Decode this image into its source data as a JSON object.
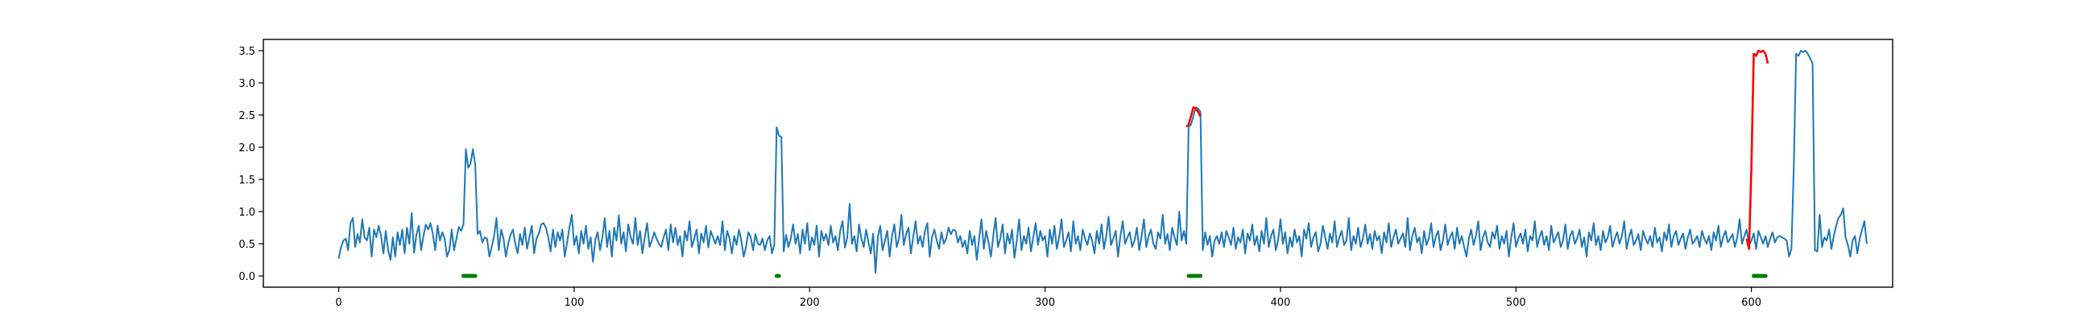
{
  "chart_data": {
    "type": "line",
    "title": "",
    "xlabel": "",
    "ylabel": "",
    "xlim": [
      -32,
      660
    ],
    "ylim": [
      -0.175,
      3.675
    ],
    "x_ticks": [
      0,
      100,
      200,
      300,
      400,
      500,
      600
    ],
    "x_tick_labels": [
      "0",
      "100",
      "200",
      "300",
      "400",
      "500",
      "600"
    ],
    "y_ticks": [
      0.0,
      0.5,
      1.0,
      1.5,
      2.0,
      2.5,
      3.0,
      3.5
    ],
    "y_tick_labels": [
      "0.0",
      "0.5",
      "1.0",
      "1.5",
      "2.0",
      "2.5",
      "3.0",
      "3.5"
    ],
    "grid": false,
    "colors": {
      "signal": "#1f77b4",
      "anomaly": "#ff0000",
      "marker": "#008000"
    },
    "series": [
      {
        "role": "signal",
        "x_start": 0,
        "x_step": 1,
        "values": [
          0.27,
          0.45,
          0.55,
          0.58,
          0.4,
          0.82,
          0.9,
          0.45,
          0.65,
          0.52,
          0.88,
          0.6,
          0.55,
          0.75,
          0.3,
          0.72,
          0.6,
          0.78,
          0.62,
          0.35,
          0.7,
          0.4,
          0.25,
          0.6,
          0.3,
          0.68,
          0.48,
          0.72,
          0.35,
          0.75,
          0.5,
          0.98,
          0.36,
          0.64,
          0.78,
          0.4,
          0.62,
          0.8,
          0.72,
          0.82,
          0.65,
          0.4,
          0.78,
          0.55,
          0.68,
          0.58,
          0.3,
          0.4,
          0.72,
          0.4,
          0.58,
          0.76,
          0.7,
          0.8,
          1.97,
          1.68,
          1.75,
          1.97,
          1.72,
          0.65,
          0.7,
          0.52,
          0.6,
          0.58,
          0.3,
          0.45,
          0.62,
          0.9,
          0.4,
          0.72,
          0.58,
          0.3,
          0.5,
          0.64,
          0.72,
          0.5,
          0.35,
          0.65,
          0.48,
          0.75,
          0.42,
          0.6,
          0.78,
          0.35,
          0.58,
          0.66,
          0.8,
          0.82,
          0.75,
          0.6,
          0.38,
          0.72,
          0.45,
          0.68,
          0.55,
          0.72,
          0.3,
          0.52,
          0.75,
          0.95,
          0.48,
          0.62,
          0.35,
          0.7,
          0.5,
          0.78,
          0.42,
          0.6,
          0.22,
          0.56,
          0.68,
          0.4,
          0.6,
          0.9,
          0.45,
          0.7,
          0.3,
          0.75,
          0.55,
          0.94,
          0.5,
          0.68,
          0.38,
          0.8,
          0.6,
          0.5,
          0.9,
          0.48,
          0.7,
          0.35,
          0.6,
          0.82,
          0.45,
          0.55,
          0.68,
          0.58,
          0.5,
          0.45,
          0.6,
          0.72,
          0.4,
          0.8,
          0.52,
          0.75,
          0.48,
          0.62,
          0.3,
          0.7,
          0.55,
          0.85,
          0.45,
          0.58,
          0.72,
          0.35,
          0.66,
          0.52,
          0.78,
          0.44,
          0.7,
          0.6,
          0.5,
          0.62,
          0.48,
          0.85,
          0.4,
          0.7,
          0.58,
          0.35,
          0.62,
          0.48,
          0.72,
          0.55,
          0.3,
          0.45,
          0.68,
          0.6,
          0.4,
          0.65,
          0.5,
          0.48,
          0.58,
          0.4,
          0.55,
          0.62,
          0.35,
          0.48,
          2.31,
          2.18,
          2.16,
          0.38,
          0.64,
          0.45,
          0.58,
          0.8,
          0.5,
          0.65,
          0.35,
          0.72,
          0.5,
          0.82,
          0.4,
          0.6,
          0.48,
          0.78,
          0.3,
          0.7,
          0.55,
          0.65,
          0.48,
          0.78,
          0.52,
          0.62,
          0.4,
          0.7,
          0.85,
          0.44,
          0.6,
          1.12,
          0.5,
          0.62,
          0.38,
          0.8,
          0.58,
          0.45,
          0.72,
          0.52,
          0.35,
          0.66,
          0.05,
          0.6,
          0.78,
          0.4,
          0.55,
          0.7,
          0.3,
          0.62,
          0.8,
          0.45,
          0.58,
          0.95,
          0.48,
          0.65,
          0.75,
          0.35,
          0.6,
          0.85,
          0.5,
          0.62,
          0.45,
          0.7,
          0.82,
          0.3,
          0.6,
          0.72,
          0.55,
          0.42,
          0.68,
          0.5,
          0.58,
          0.75,
          0.65,
          0.72,
          0.7,
          0.52,
          0.62,
          0.45,
          0.55,
          0.35,
          0.7,
          0.48,
          0.62,
          0.25,
          0.58,
          0.88,
          0.42,
          0.7,
          0.52,
          0.3,
          0.62,
          0.9,
          0.45,
          0.58,
          0.8,
          0.35,
          0.66,
          0.5,
          0.72,
          0.28,
          0.55,
          0.88,
          0.4,
          0.62,
          0.5,
          0.75,
          0.38,
          0.6,
          0.82,
          0.48,
          0.7,
          0.55,
          0.62,
          0.3,
          0.72,
          0.5,
          0.78,
          0.42,
          0.6,
          0.88,
          0.45,
          0.55,
          0.68,
          0.38,
          0.85,
          0.5,
          0.62,
          0.4,
          0.72,
          0.58,
          0.48,
          0.66,
          0.55,
          0.35,
          0.7,
          0.5,
          0.8,
          0.42,
          0.62,
          0.92,
          0.48,
          0.58,
          0.7,
          0.3,
          0.62,
          0.85,
          0.5,
          0.6,
          0.68,
          0.45,
          0.55,
          0.75,
          0.4,
          0.62,
          0.88,
          0.45,
          0.62,
          0.72,
          0.5,
          0.42,
          0.68,
          0.58,
          0.95,
          0.5,
          0.65,
          0.4,
          0.75,
          0.6,
          0.48,
          1.0,
          0.55,
          0.7,
          0.5,
          2.32,
          2.35,
          2.48,
          2.62,
          2.6,
          2.55,
          0.4,
          0.68,
          0.48,
          0.62,
          0.3,
          0.55,
          0.62,
          0.5,
          0.68,
          0.45,
          0.7,
          0.6,
          0.48,
          0.75,
          0.42,
          0.6,
          0.52,
          0.72,
          0.35,
          0.66,
          0.55,
          0.8,
          0.48,
          0.62,
          0.38,
          0.7,
          0.5,
          0.9,
          0.45,
          0.62,
          0.72,
          0.4,
          0.55,
          0.88,
          0.5,
          0.68,
          0.35,
          0.6,
          0.45,
          0.72,
          0.52,
          0.62,
          0.3,
          0.72,
          0.58,
          0.82,
          0.45,
          0.6,
          0.68,
          0.38,
          0.5,
          0.78,
          0.6,
          0.42,
          0.66,
          0.52,
          0.85,
          0.45,
          0.6,
          0.7,
          0.48,
          0.55,
          0.9,
          0.4,
          0.62,
          0.5,
          0.75,
          0.45,
          0.58,
          0.8,
          0.5,
          0.65,
          0.42,
          0.7,
          0.55,
          0.62,
          0.35,
          0.68,
          0.52,
          0.82,
          0.45,
          0.6,
          0.72,
          0.5,
          0.58,
          0.66,
          0.45,
          0.9,
          0.4,
          0.62,
          0.75,
          0.52,
          0.6,
          0.35,
          0.7,
          0.48,
          0.58,
          0.82,
          0.45,
          0.62,
          0.7,
          0.4,
          0.55,
          0.8,
          0.48,
          0.6,
          0.68,
          0.42,
          0.75,
          0.5,
          0.62,
          0.45,
          0.3,
          0.58,
          0.72,
          0.48,
          0.62,
          0.85,
          0.4,
          0.6,
          0.7,
          0.52,
          0.45,
          0.68,
          0.58,
          0.78,
          0.42,
          0.62,
          0.5,
          0.7,
          0.3,
          0.6,
          0.82,
          0.45,
          0.58,
          0.66,
          0.5,
          0.72,
          0.38,
          0.62,
          0.55,
          0.85,
          0.45,
          0.6,
          0.7,
          0.48,
          0.62,
          0.4,
          0.78,
          0.52,
          0.6,
          0.68,
          0.45,
          0.55,
          0.8,
          0.42,
          0.62,
          0.7,
          0.5,
          0.58,
          0.72,
          0.45,
          0.6,
          0.3,
          0.68,
          0.55,
          0.82,
          0.48,
          0.62,
          0.4,
          0.7,
          0.52,
          0.6,
          0.78,
          0.45,
          0.58,
          0.68,
          0.5,
          0.62,
          0.85,
          0.42,
          0.6,
          0.72,
          0.48,
          0.55,
          0.65,
          0.4,
          0.7,
          0.58,
          0.5,
          0.62,
          0.45,
          0.75,
          0.52,
          0.6,
          0.38,
          0.68,
          0.55,
          0.8,
          0.45,
          0.62,
          0.7,
          0.48,
          0.58,
          0.66,
          0.42,
          0.6,
          0.72,
          0.5,
          0.55,
          0.62,
          0.45,
          0.7,
          0.58,
          0.5,
          0.62,
          0.4,
          0.68,
          0.55,
          0.78,
          0.45,
          0.6,
          0.7,
          0.52,
          0.58,
          0.65,
          0.45,
          0.6,
          0.88,
          0.5,
          0.62,
          0.72,
          0.48,
          0.55,
          0.66,
          0.42,
          0.7,
          0.6,
          0.5,
          0.62,
          0.45,
          0.58,
          0.68,
          0.52,
          0.6,
          0.62,
          0.6,
          0.58,
          0.55,
          0.3,
          0.42,
          1.68,
          3.45,
          3.42,
          3.5,
          3.48,
          3.5,
          3.45,
          3.38,
          3.3,
          0.4,
          0.38,
          0.95,
          0.45,
          0.6,
          0.55,
          0.72,
          0.42,
          0.62,
          0.78,
          0.9,
          0.95,
          1.05,
          0.6,
          0.48,
          0.3,
          0.55,
          0.62,
          0.35,
          0.58,
          0.72,
          0.85,
          0.5
        ]
      },
      {
        "role": "anomaly",
        "segments": [
          {
            "x": [
              360,
              361,
              362,
              363,
              364,
              365,
              366
            ],
            "y": [
              2.32,
              2.35,
              2.48,
              2.62,
              2.6,
              2.55,
              2.48
            ]
          },
          {
            "x": [
              598,
              599,
              600,
              601,
              602,
              603,
              604,
              605,
              606,
              607
            ],
            "y": [
              0.58,
              0.42,
              1.68,
              3.45,
              3.42,
              3.5,
              3.48,
              3.5,
              3.45,
              3.3
            ]
          }
        ]
      },
      {
        "role": "marker",
        "segments": [
          {
            "x": [
              53,
              54,
              55,
              56,
              57,
              58
            ],
            "y": [
              0,
              0,
              0,
              0,
              0,
              0
            ]
          },
          {
            "x": [
              186,
              187
            ],
            "y": [
              0,
              0
            ]
          },
          {
            "x": [
              361,
              362,
              363,
              364,
              365,
              366
            ],
            "y": [
              0,
              0,
              0,
              0,
              0,
              0
            ]
          },
          {
            "x": [
              601,
              602,
              603,
              604,
              605,
              606
            ],
            "y": [
              0,
              0,
              0,
              0,
              0,
              0
            ]
          }
        ]
      }
    ]
  }
}
